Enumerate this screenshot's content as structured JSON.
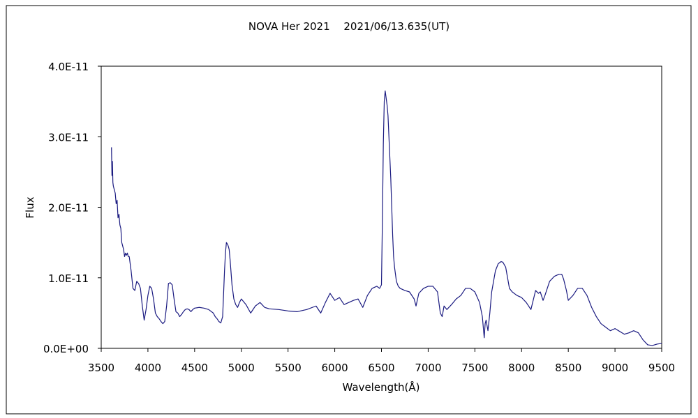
{
  "chart_data": {
    "type": "line",
    "title": "NOVA Her 2021　 2021/06/13.635(UT)",
    "xlabel": "Wavelength(Å)",
    "ylabel": "Flux",
    "xlim": [
      3500,
      9500
    ],
    "ylim": [
      0,
      4e-11
    ],
    "x_ticks": [
      3500,
      4000,
      4500,
      5000,
      5500,
      6000,
      6500,
      7000,
      7500,
      8000,
      8500,
      9000,
      9500
    ],
    "x_tick_labels": [
      "3500",
      "4000",
      "4500",
      "5000",
      "5500",
      "6000",
      "6500",
      "7000",
      "7500",
      "8000",
      "8500",
      "9000",
      "9500"
    ],
    "y_ticks": [
      0,
      1e-11,
      2e-11,
      3e-11,
      4e-11
    ],
    "y_tick_labels": [
      "0.0E+00",
      "1.0E-11",
      "2.0E-11",
      "3.0E-11",
      "4.0E-11"
    ],
    "grid": false,
    "legend": "none",
    "colors": {
      "line": "#1a1a80",
      "axis": "#000000",
      "frame": "#000000"
    },
    "series": [
      {
        "x": [
          3610,
          3615,
          3620,
          3625,
          3630,
          3640,
          3650,
          3660,
          3670,
          3680,
          3690,
          3700,
          3710,
          3720,
          3730,
          3740,
          3750,
          3760,
          3770,
          3780,
          3790,
          3800,
          3820,
          3840,
          3860,
          3880,
          3900,
          3920,
          3940,
          3960,
          3980,
          4000,
          4020,
          4040,
          4060,
          4080,
          4100,
          4120,
          4140,
          4160,
          4180,
          4200,
          4220,
          4240,
          4260,
          4280,
          4300,
          4320,
          4340,
          4360,
          4380,
          4400,
          4420,
          4440,
          4460,
          4480,
          4500,
          4550,
          4600,
          4650,
          4700,
          4720,
          4740,
          4760,
          4780,
          4800,
          4820,
          4830,
          4840,
          4850,
          4860,
          4870,
          4880,
          4900,
          4920,
          4940,
          4960,
          4980,
          5000,
          5050,
          5100,
          5150,
          5200,
          5250,
          5300,
          5400,
          5500,
          5600,
          5700,
          5800,
          5850,
          5900,
          5950,
          6000,
          6050,
          6100,
          6150,
          6200,
          6250,
          6300,
          6350,
          6400,
          6450,
          6480,
          6500,
          6510,
          6520,
          6530,
          6540,
          6550,
          6560,
          6570,
          6580,
          6590,
          6600,
          6610,
          6620,
          6630,
          6640,
          6650,
          6660,
          6680,
          6700,
          6750,
          6800,
          6850,
          6870,
          6900,
          6950,
          7000,
          7050,
          7100,
          7130,
          7150,
          7170,
          7200,
          7250,
          7300,
          7350,
          7400,
          7450,
          7500,
          7550,
          7580,
          7600,
          7610,
          7620,
          7640,
          7660,
          7680,
          7700,
          7720,
          7750,
          7780,
          7800,
          7830,
          7850,
          7870,
          7900,
          7950,
          8000,
          8050,
          8100,
          8150,
          8180,
          8200,
          8230,
          8250,
          8300,
          8350,
          8400,
          8430,
          8450,
          8480,
          8500,
          8550,
          8600,
          8650,
          8700,
          8750,
          8800,
          8850,
          8900,
          8950,
          9000,
          9050,
          9100,
          9150,
          9200,
          9250,
          9300,
          9350,
          9400,
          9450,
          9500
        ],
        "y": [
          2.85e-11,
          2.45e-11,
          2.65e-11,
          2.35e-11,
          2.3e-11,
          2.25e-11,
          2.2e-11,
          2.05e-11,
          2.1e-11,
          1.85e-11,
          1.9e-11,
          1.75e-11,
          1.7e-11,
          1.5e-11,
          1.45e-11,
          1.4e-11,
          1.3e-11,
          1.35e-11,
          1.32e-11,
          1.35e-11,
          1.3e-11,
          1.3e-11,
          1.1e-11,
          8.5e-12,
          8.2e-12,
          9.5e-12,
          9.2e-12,
          8.5e-12,
          6e-12,
          4e-12,
          5.5e-12,
          7.5e-12,
          8.8e-12,
          8.5e-12,
          7e-12,
          5e-12,
          4.5e-12,
          4.2e-12,
          3.8e-12,
          3.5e-12,
          3.8e-12,
          6e-12,
          9.2e-12,
          9.3e-12,
          9e-12,
          7e-12,
          5.2e-12,
          5e-12,
          4.5e-12,
          4.8e-12,
          5.2e-12,
          5.5e-12,
          5.6e-12,
          5.5e-12,
          5.2e-12,
          5.5e-12,
          5.7e-12,
          5.8e-12,
          5.7e-12,
          5.5e-12,
          5e-12,
          4.5e-12,
          4.2e-12,
          3.8e-12,
          3.6e-12,
          4.5e-12,
          1.1e-11,
          1.35e-11,
          1.5e-11,
          1.48e-11,
          1.45e-11,
          1.4e-11,
          1.25e-11,
          9e-12,
          7e-12,
          6.2e-12,
          5.8e-12,
          6.5e-12,
          7e-12,
          6.2e-12,
          5e-12,
          6e-12,
          6.5e-12,
          5.8e-12,
          5.6e-12,
          5.5e-12,
          5.3e-12,
          5.2e-12,
          5.5e-12,
          6e-12,
          5e-12,
          6.5e-12,
          7.8e-12,
          6.8e-12,
          7.2e-12,
          6.2e-12,
          6.5e-12,
          6.8e-12,
          7e-12,
          5.8e-12,
          7.5e-12,
          8.5e-12,
          8.8e-12,
          8.5e-12,
          9e-12,
          1.8e-11,
          2.9e-11,
          3.5e-11,
          3.65e-11,
          3.55e-11,
          3.45e-11,
          3.3e-11,
          3e-11,
          2.7e-11,
          2.4e-11,
          2e-11,
          1.6e-11,
          1.3e-11,
          1.15e-11,
          1.05e-11,
          9.5e-12,
          8.8e-12,
          8.5e-12,
          8.2e-12,
          8e-12,
          7e-12,
          6e-12,
          7.8e-12,
          8.5e-12,
          8.8e-12,
          8.8e-12,
          8e-12,
          5e-12,
          4.5e-12,
          6e-12,
          5.5e-12,
          6.2e-12,
          7e-12,
          7.5e-12,
          8.5e-12,
          8.5e-12,
          8e-12,
          6.5e-12,
          4.5e-12,
          1.5e-12,
          3.5e-12,
          4e-12,
          2.5e-12,
          5e-12,
          8e-12,
          9.5e-12,
          1.1e-11,
          1.2e-11,
          1.23e-11,
          1.22e-11,
          1.15e-11,
          1e-11,
          8.5e-12,
          8e-12,
          7.5e-12,
          7.2e-12,
          6.5e-12,
          5.5e-12,
          8.2e-12,
          7.8e-12,
          8e-12,
          6.8e-12,
          7.5e-12,
          9.5e-12,
          1.02e-11,
          1.05e-11,
          1.05e-11,
          9.8e-12,
          8.2e-12,
          6.8e-12,
          7.5e-12,
          8.5e-12,
          8.5e-12,
          7.5e-12,
          5.8e-12,
          4.5e-12,
          3.5e-12,
          3e-12,
          2.5e-12,
          2.8e-12,
          2.4e-12,
          2e-12,
          2.2e-12,
          2.5e-12,
          2.2e-12,
          1.2e-12,
          5e-13,
          4e-13,
          6e-13,
          7e-13
        ]
      }
    ]
  }
}
